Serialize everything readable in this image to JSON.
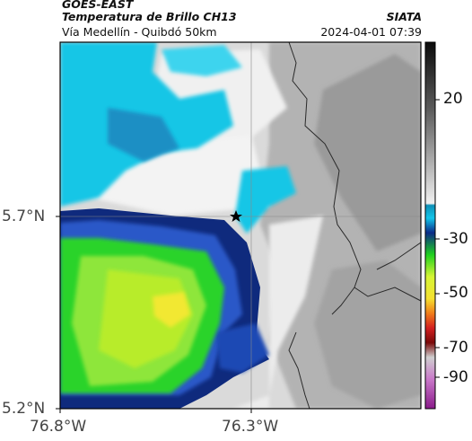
{
  "header": {
    "satellite": "GOES-EAST",
    "product": "Temperatura de Brillo CH13",
    "subtitle": "Vía Medellín - Quibdó 50km",
    "org": "SIATA",
    "datetime": "2024-04-01 07:39"
  },
  "map": {
    "lat_labels": [
      "5.7°N",
      "5.2°N"
    ],
    "lon_labels": [
      "76.8°W",
      "76.3°W"
    ],
    "marker_icon": "star-icon",
    "colors": {
      "cyan": "#17c6e6",
      "blue": "#1e3fa8",
      "navy": "#0f2a7d",
      "green": "#2bd32b",
      "lime": "#b8ec2c",
      "yellow": "#f2e830",
      "light_gray": "#e6e6e6",
      "mid_gray": "#a9a9a9",
      "border": "#2a2a2a"
    }
  },
  "colorbar": {
    "labels": [
      "20",
      "-30",
      "-50",
      "-70",
      "-90"
    ],
    "colors": [
      "#0b0b0b",
      "#5a5a5a",
      "#b0b0b0",
      "#f0f0f0",
      "#0d8fb6",
      "#13c5e9",
      "#0b2a88",
      "#1fd11f",
      "#d6f534",
      "#f5e030",
      "#f07d1a",
      "#d32020",
      "#7a0a0a",
      "#cfcfcf",
      "#c978c9",
      "#8a1b8a"
    ]
  }
}
